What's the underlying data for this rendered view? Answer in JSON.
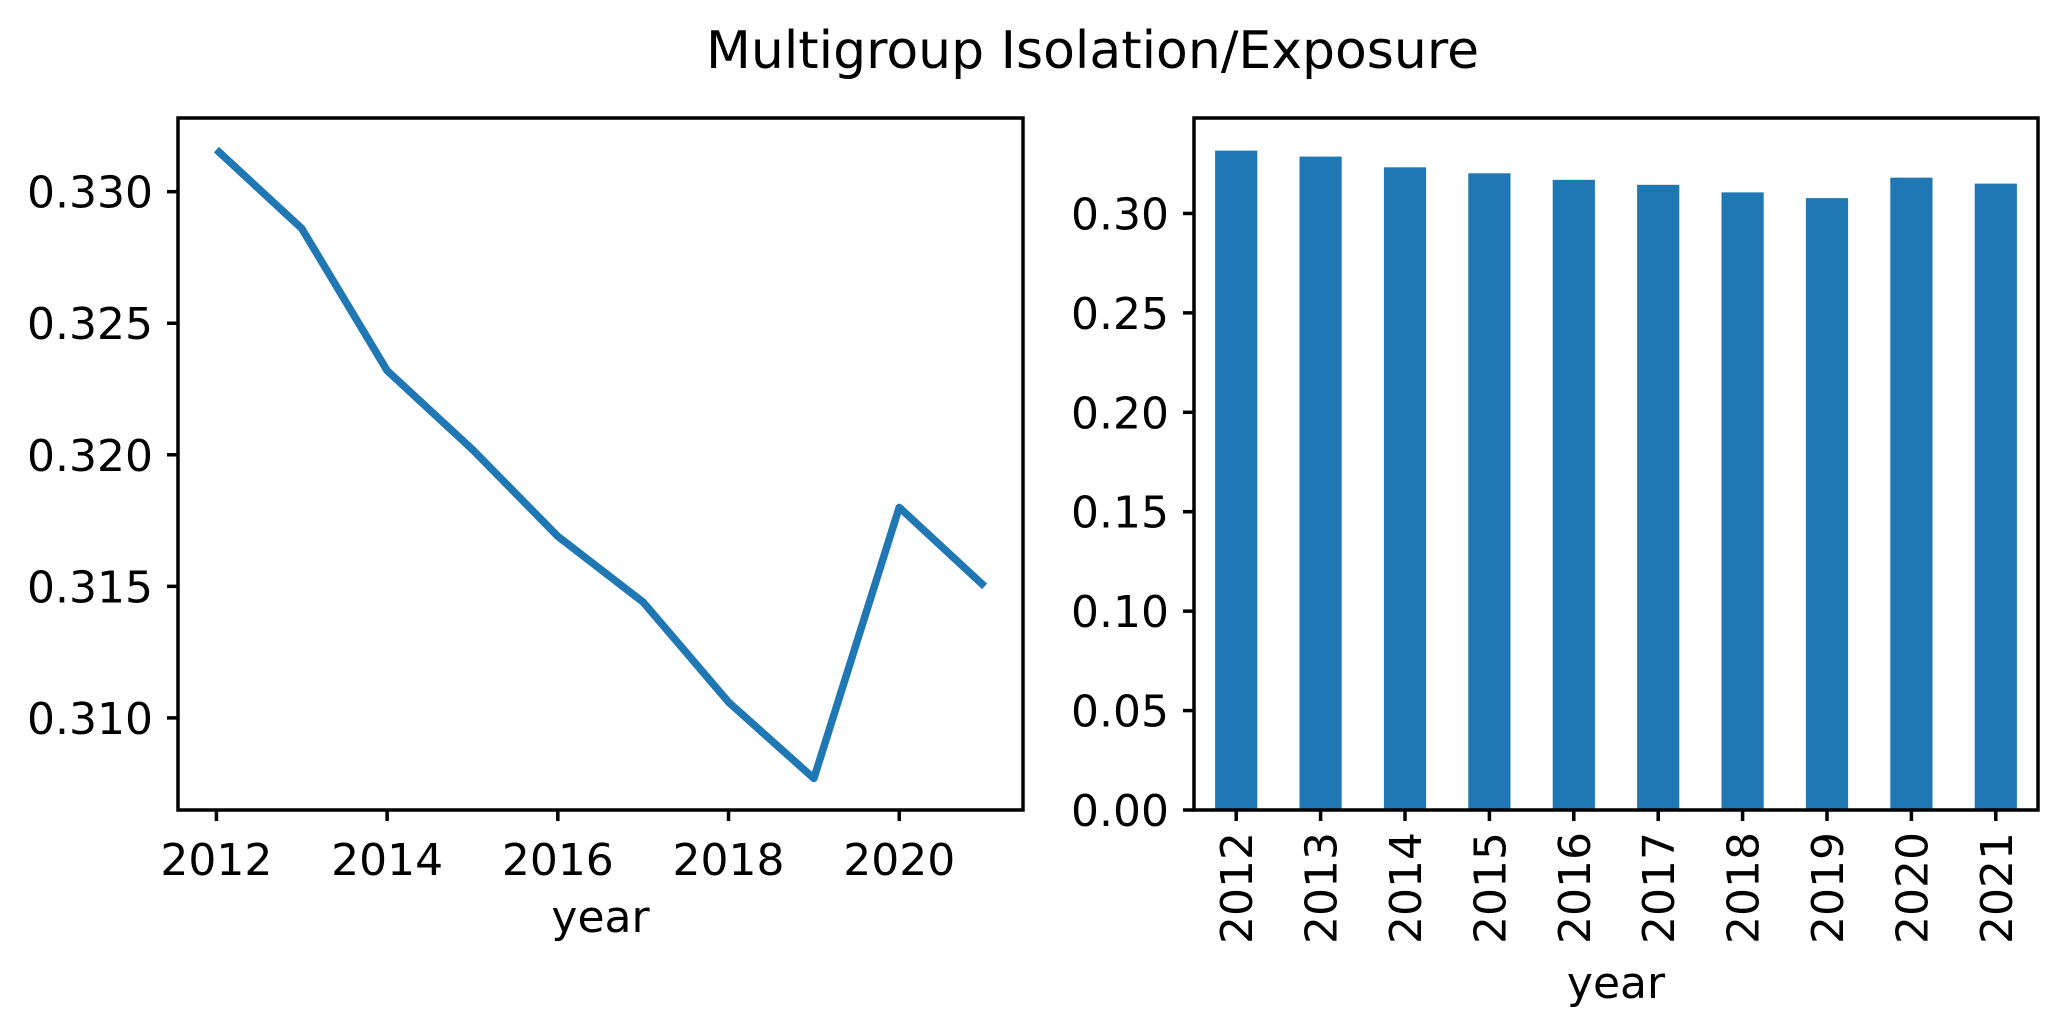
{
  "title": "Multigroup Isolation/Exposure",
  "accent_color": "#1f77b4",
  "chart_data": [
    {
      "type": "line",
      "title": "",
      "xlabel": "year",
      "ylabel": "",
      "x": [
        2012,
        2013,
        2014,
        2015,
        2016,
        2017,
        2018,
        2019,
        2020,
        2021
      ],
      "values": [
        0.3316,
        0.3286,
        0.3232,
        0.3202,
        0.3169,
        0.3144,
        0.3106,
        0.3077,
        0.318,
        0.315
      ],
      "xticks": {
        "values": [
          2012,
          2014,
          2016,
          2018,
          2020
        ],
        "labels": [
          "2012",
          "2014",
          "2016",
          "2018",
          "2020"
        ]
      },
      "yticks": {
        "values": [
          0.31,
          0.315,
          0.32,
          0.325,
          0.33
        ],
        "labels": [
          "0.310",
          "0.315",
          "0.320",
          "0.325",
          "0.330"
        ]
      },
      "xlim": [
        2011.55,
        2021.45
      ],
      "ylim": [
        0.3065,
        0.3328
      ],
      "grid": false,
      "legend": null,
      "line_color": "#1f77b4"
    },
    {
      "type": "bar",
      "title": "",
      "xlabel": "year",
      "ylabel": "",
      "categories": [
        "2012",
        "2013",
        "2014",
        "2015",
        "2016",
        "2017",
        "2018",
        "2019",
        "2020",
        "2021"
      ],
      "values": [
        0.3316,
        0.3286,
        0.3232,
        0.3202,
        0.3169,
        0.3144,
        0.3106,
        0.3077,
        0.318,
        0.315
      ],
      "yticks": {
        "values": [
          0.0,
          0.05,
          0.1,
          0.15,
          0.2,
          0.25,
          0.3
        ],
        "labels": [
          "0.00",
          "0.05",
          "0.10",
          "0.15",
          "0.20",
          "0.25",
          "0.30"
        ]
      },
      "ylim": [
        0,
        0.348
      ],
      "grid": false,
      "legend": null,
      "bar_color": "#1f77b4",
      "xtick_label_rotation": 90
    }
  ]
}
